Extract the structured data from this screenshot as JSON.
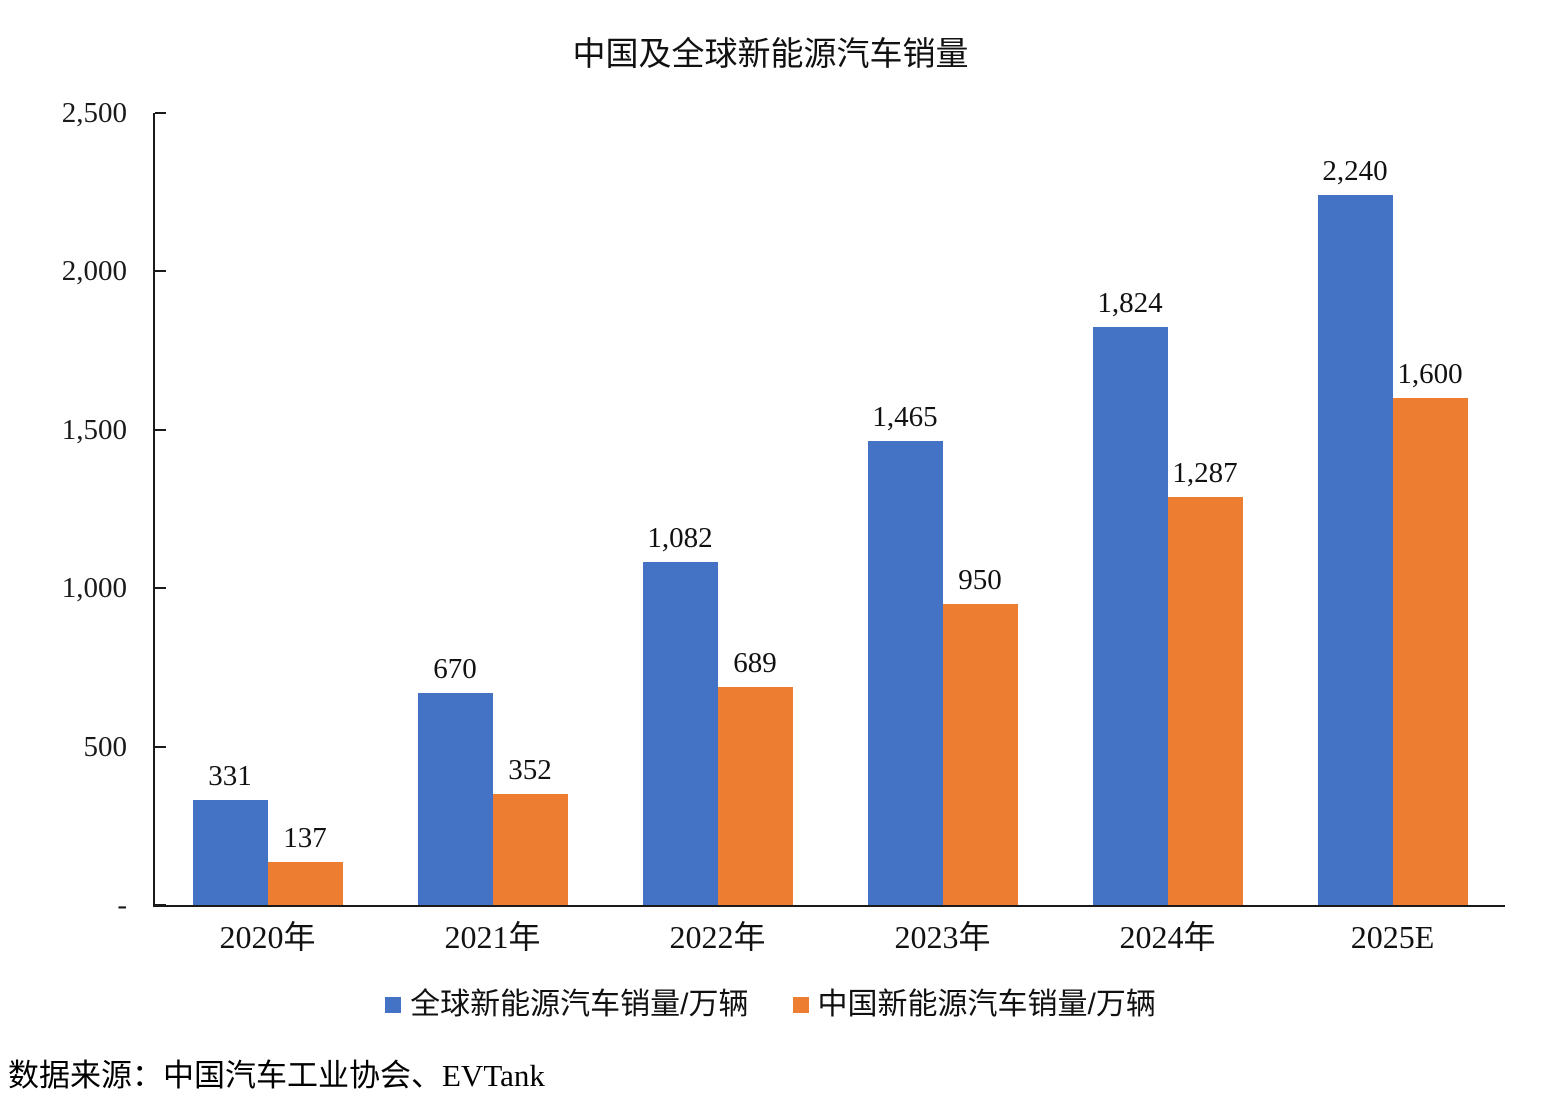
{
  "source_note": "数据来源：中国汽车工业协会、EVTank",
  "colors": {
    "series_global": "#4472C4",
    "series_china": "#ED7D31",
    "axis": "#1a1a1a",
    "text": "#111111",
    "background": "#ffffff"
  },
  "chart_data": {
    "type": "bar",
    "title": "中国及全球新能源汽车销量",
    "categories": [
      "2020年",
      "2021年",
      "2022年",
      "2023年",
      "2024年",
      "2025E"
    ],
    "series": [
      {
        "name": "全球新能源汽车销量/万辆",
        "color": "#4472C4",
        "values": [
          331,
          670,
          1082,
          1465,
          1824,
          2240
        ],
        "labels": [
          "331",
          "670",
          "1,082",
          "1,465",
          "1,824",
          "2,240"
        ]
      },
      {
        "name": "中国新能源汽车销量/万辆",
        "color": "#ED7D31",
        "values": [
          137,
          352,
          689,
          950,
          1287,
          1600
        ],
        "labels": [
          "137",
          "352",
          "689",
          "950",
          "1,287",
          "1,600"
        ]
      }
    ],
    "xlabel": "",
    "ylabel": "",
    "ylim": [
      0,
      2500
    ],
    "y_ticks": [
      {
        "value": 2500,
        "label": "2,500"
      },
      {
        "value": 2000,
        "label": "2,000"
      },
      {
        "value": 1500,
        "label": "1,500"
      },
      {
        "value": 1000,
        "label": "1,000"
      },
      {
        "value": 500,
        "label": "500"
      },
      {
        "value": 0,
        "label": "-"
      }
    ],
    "grid": false,
    "legend_position": "bottom"
  }
}
